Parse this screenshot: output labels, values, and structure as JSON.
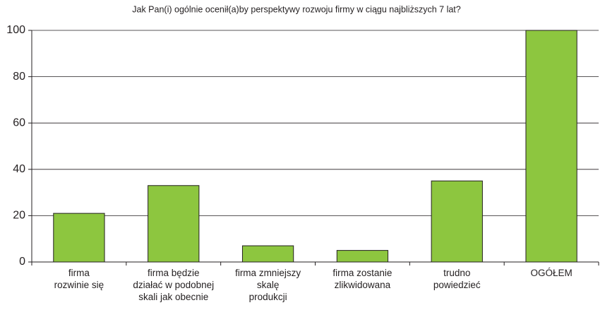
{
  "chart_data": {
    "type": "bar",
    "title": "Jak Pan(i) ogólnie ocenił(a)by perspektywy rozwoju firmy w ciągu najbliższych 7 lat?",
    "categories": [
      "firma\nrozwinie się",
      "firma będzie\ndziałać w podobnej\nskali jak obecnie",
      "firma zmniejszy\nskalę\nprodukcji",
      "firma zostanie\nzlikwidowana",
      "trudno\npowiedzieć",
      "OGÓŁEM"
    ],
    "values": [
      21,
      33,
      7,
      5,
      35,
      100
    ],
    "color": "#8dc63f",
    "ylim": [
      0,
      100
    ],
    "yticks": [
      0,
      20,
      40,
      60,
      80,
      100
    ],
    "grid": true
  }
}
